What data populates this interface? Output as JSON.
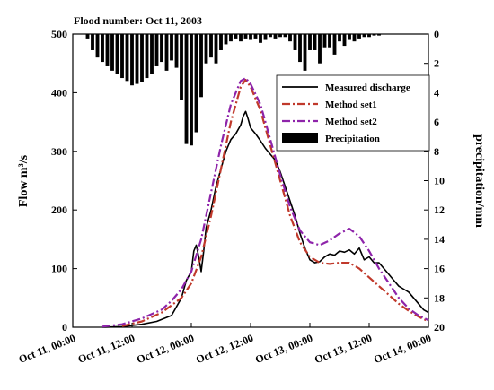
{
  "chart_data": {
    "type": "line",
    "title": "Flood number: Oct 11, 2003",
    "xlabel": "",
    "ylabel": "Flow m³/s",
    "y2label": "precipitation/mm",
    "xlim": [
      0,
      72
    ],
    "ylim": [
      0,
      500
    ],
    "y2lim_inverted": [
      0,
      20
    ],
    "x_tick_labels": [
      "Oct 11, 00:00",
      "Oct 11, 12:00",
      "Oct 12, 00:00",
      "Oct 12, 12:00",
      "Oct 13, 00:00",
      "Oct 13, 12:00",
      "Oct 14, 00:00"
    ],
    "x_tick_hours": [
      0,
      12,
      24,
      36,
      48,
      60,
      72
    ],
    "y_ticks": [
      0,
      100,
      200,
      300,
      400,
      500
    ],
    "y2_ticks": [
      0,
      2,
      4,
      6,
      8,
      10,
      12,
      14,
      16,
      18,
      20
    ],
    "legend_position": "top-right",
    "series": [
      {
        "name": "Measured discharge",
        "color": "#000000",
        "dash": "solid",
        "points": [
          [
            6,
            0
          ],
          [
            10,
            1
          ],
          [
            14,
            5
          ],
          [
            17,
            10
          ],
          [
            20,
            20
          ],
          [
            21,
            35
          ],
          [
            22,
            50
          ],
          [
            23,
            80
          ],
          [
            24,
            95
          ],
          [
            24.5,
            130
          ],
          [
            25,
            140
          ],
          [
            25.5,
            120
          ],
          [
            26,
            95
          ],
          [
            26.5,
            130
          ],
          [
            27,
            170
          ],
          [
            28,
            200
          ],
          [
            29,
            240
          ],
          [
            30,
            270
          ],
          [
            31,
            300
          ],
          [
            32,
            320
          ],
          [
            33,
            330
          ],
          [
            34,
            345
          ],
          [
            34.5,
            360
          ],
          [
            35,
            368
          ],
          [
            35.5,
            355
          ],
          [
            36,
            340
          ],
          [
            37,
            330
          ],
          [
            38,
            318
          ],
          [
            39,
            305
          ],
          [
            40,
            295
          ],
          [
            41,
            285
          ],
          [
            42,
            265
          ],
          [
            43,
            240
          ],
          [
            44,
            215
          ],
          [
            45,
            190
          ],
          [
            46,
            160
          ],
          [
            47,
            135
          ],
          [
            48,
            115
          ],
          [
            49,
            110
          ],
          [
            50,
            112
          ],
          [
            51,
            120
          ],
          [
            52,
            125
          ],
          [
            53,
            123
          ],
          [
            54,
            130
          ],
          [
            55,
            128
          ],
          [
            56,
            132
          ],
          [
            57,
            125
          ],
          [
            58,
            135
          ],
          [
            59,
            115
          ],
          [
            60,
            120
          ],
          [
            61,
            110
          ],
          [
            62,
            110
          ],
          [
            63,
            100
          ],
          [
            64,
            90
          ],
          [
            65,
            80
          ],
          [
            66,
            70
          ],
          [
            67,
            65
          ],
          [
            68,
            60
          ],
          [
            69,
            50
          ],
          [
            70,
            40
          ],
          [
            71,
            30
          ],
          [
            72,
            25
          ]
        ]
      },
      {
        "name": "Method set1",
        "color": "#c0392b",
        "dash": "dashdot",
        "points": [
          [
            10,
            2
          ],
          [
            14,
            10
          ],
          [
            18,
            25
          ],
          [
            22,
            50
          ],
          [
            24,
            75
          ],
          [
            26,
            120
          ],
          [
            28,
            190
          ],
          [
            30,
            270
          ],
          [
            32,
            350
          ],
          [
            34,
            410
          ],
          [
            35,
            422
          ],
          [
            36,
            410
          ],
          [
            38,
            370
          ],
          [
            40,
            310
          ],
          [
            42,
            250
          ],
          [
            44,
            190
          ],
          [
            46,
            145
          ],
          [
            48,
            120
          ],
          [
            50,
            110
          ],
          [
            52,
            108
          ],
          [
            54,
            110
          ],
          [
            56,
            110
          ],
          [
            58,
            100
          ],
          [
            60,
            85
          ],
          [
            62,
            70
          ],
          [
            64,
            55
          ],
          [
            66,
            40
          ],
          [
            68,
            28
          ],
          [
            70,
            18
          ],
          [
            72,
            10
          ]
        ]
      },
      {
        "name": "Method set2",
        "color": "#8e24aa",
        "dash": "dashdot",
        "points": [
          [
            6,
            1
          ],
          [
            10,
            5
          ],
          [
            14,
            15
          ],
          [
            18,
            30
          ],
          [
            20,
            45
          ],
          [
            22,
            65
          ],
          [
            24,
            95
          ],
          [
            26,
            150
          ],
          [
            28,
            230
          ],
          [
            30,
            310
          ],
          [
            32,
            380
          ],
          [
            34,
            420
          ],
          [
            35,
            425
          ],
          [
            36,
            415
          ],
          [
            38,
            380
          ],
          [
            40,
            320
          ],
          [
            42,
            260
          ],
          [
            44,
            205
          ],
          [
            46,
            165
          ],
          [
            48,
            145
          ],
          [
            50,
            140
          ],
          [
            52,
            148
          ],
          [
            54,
            160
          ],
          [
            56,
            168
          ],
          [
            58,
            155
          ],
          [
            60,
            130
          ],
          [
            62,
            100
          ],
          [
            64,
            75
          ],
          [
            66,
            50
          ],
          [
            68,
            32
          ],
          [
            70,
            20
          ],
          [
            72,
            12
          ]
        ]
      }
    ],
    "precipitation": {
      "name": "Precipitation",
      "color": "#000000",
      "hours": [
        3,
        4,
        5,
        6,
        7,
        8,
        9,
        10,
        11,
        12,
        13,
        14,
        15,
        16,
        17,
        18,
        19,
        20,
        21,
        22,
        23,
        24,
        25,
        26,
        27,
        28,
        29,
        30,
        31,
        32,
        33,
        34,
        35,
        36,
        37,
        38,
        39,
        40,
        41,
        42,
        43,
        44,
        45,
        46,
        47,
        48,
        49,
        50,
        51,
        52,
        53,
        54,
        55,
        56,
        57,
        58,
        59,
        60,
        61,
        62
      ],
      "values_mm": [
        0.3,
        1.1,
        1.6,
        1.9,
        2.2,
        2.5,
        2.7,
        3.0,
        3.2,
        3.5,
        3.4,
        3.3,
        3.0,
        2.7,
        2.2,
        1.9,
        2.5,
        1.8,
        2.3,
        4.5,
        7.5,
        7.6,
        6.7,
        4.3,
        2.0,
        1.6,
        2.0,
        1.1,
        0.7,
        0.5,
        0.3,
        0.5,
        0.3,
        0.4,
        0.3,
        0.6,
        0.4,
        0.2,
        0.3,
        0.2,
        0.2,
        0.5,
        1.1,
        1.9,
        2.5,
        1.1,
        1.1,
        2.0,
        0.9,
        0.9,
        1.4,
        0.5,
        0.8,
        0.4,
        0.5,
        0.3,
        0.2,
        0.2,
        0.1,
        0.1
      ]
    }
  }
}
